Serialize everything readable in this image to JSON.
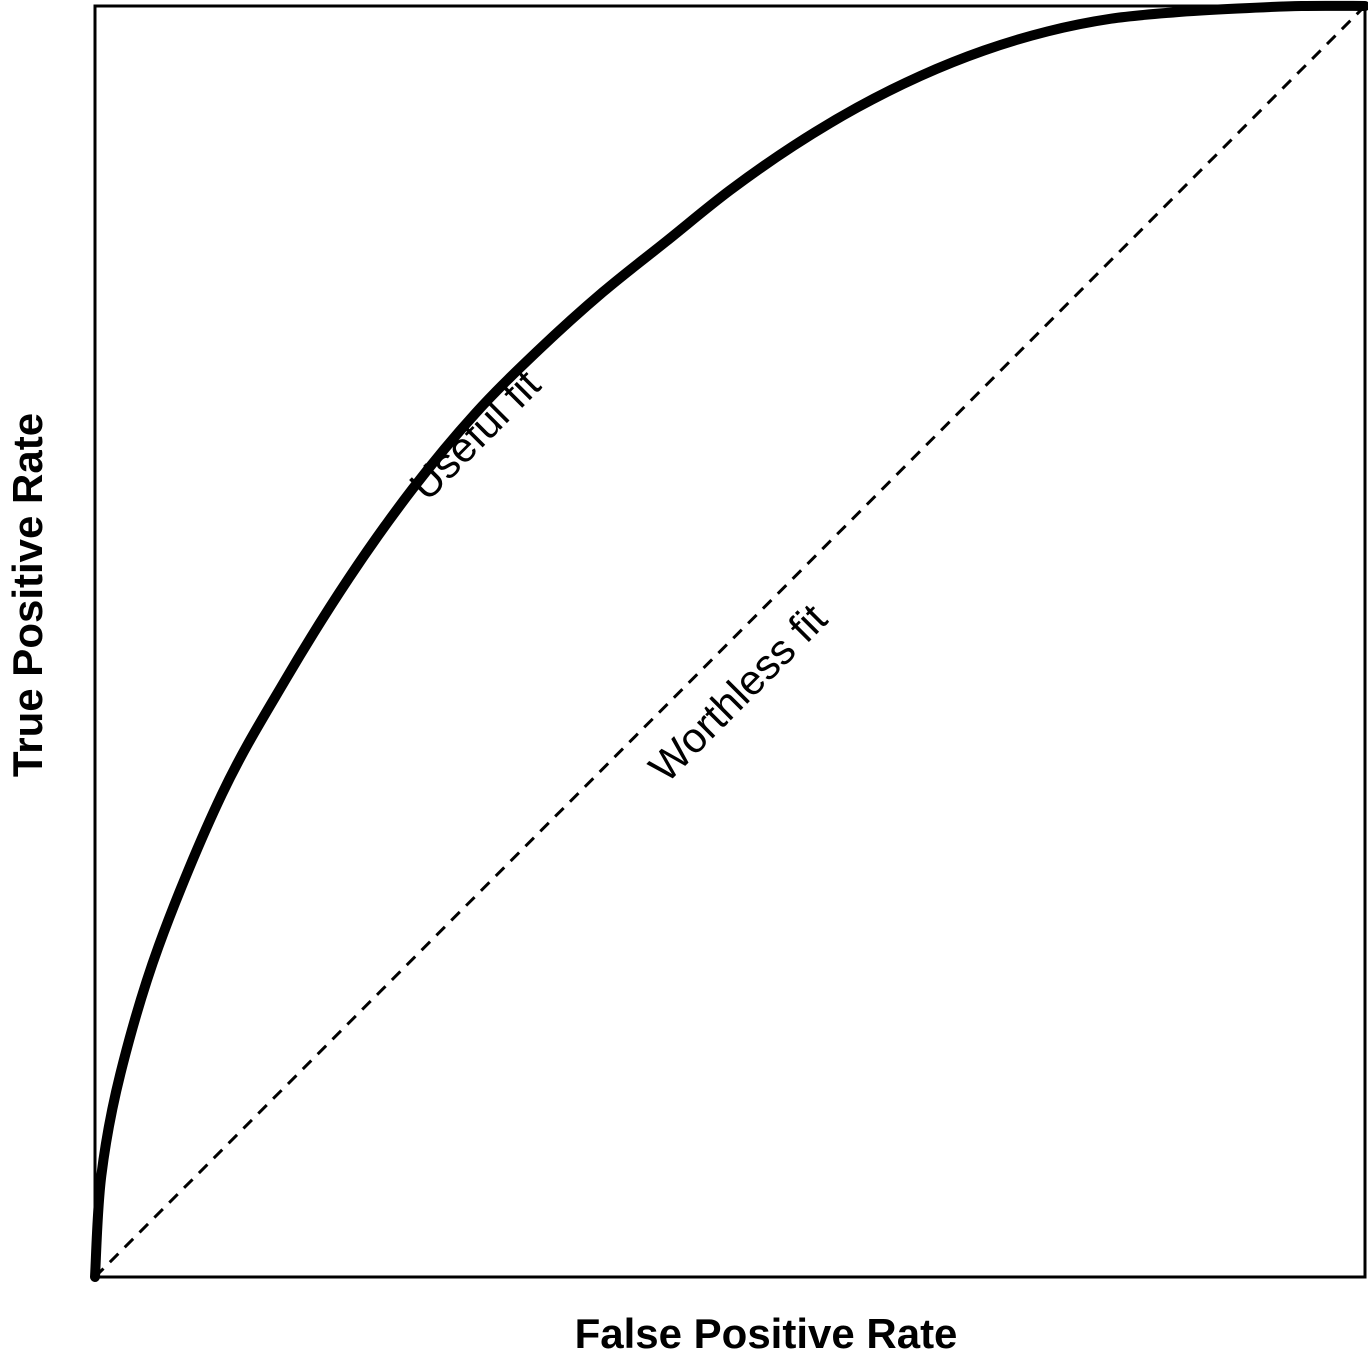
{
  "chart_data": {
    "type": "line",
    "title": "",
    "xlabel": "False Positive Rate",
    "ylabel": "True Positive Rate",
    "xlim": [
      0,
      1
    ],
    "ylim": [
      0,
      1
    ],
    "grid": false,
    "legend": "none",
    "series": [
      {
        "name": "Useful fit",
        "style": "solid",
        "color": "#000000",
        "x": [
          0,
          0.005,
          0.02,
          0.05,
          0.1,
          0.15,
          0.2,
          0.25,
          0.3,
          0.35,
          0.4,
          0.45,
          0.5,
          0.55,
          0.6,
          0.65,
          0.7,
          0.75,
          0.8,
          0.85,
          0.9,
          0.95,
          1.0
        ],
        "y": [
          0,
          0.08,
          0.16,
          0.26,
          0.38,
          0.47,
          0.55,
          0.62,
          0.68,
          0.73,
          0.775,
          0.815,
          0.855,
          0.89,
          0.92,
          0.945,
          0.965,
          0.98,
          0.99,
          0.995,
          0.998,
          1.0,
          1.0
        ]
      },
      {
        "name": "Worthless fit",
        "style": "dashed",
        "color": "#000000",
        "x": [
          0,
          1
        ],
        "y": [
          0,
          1
        ]
      }
    ]
  }
}
